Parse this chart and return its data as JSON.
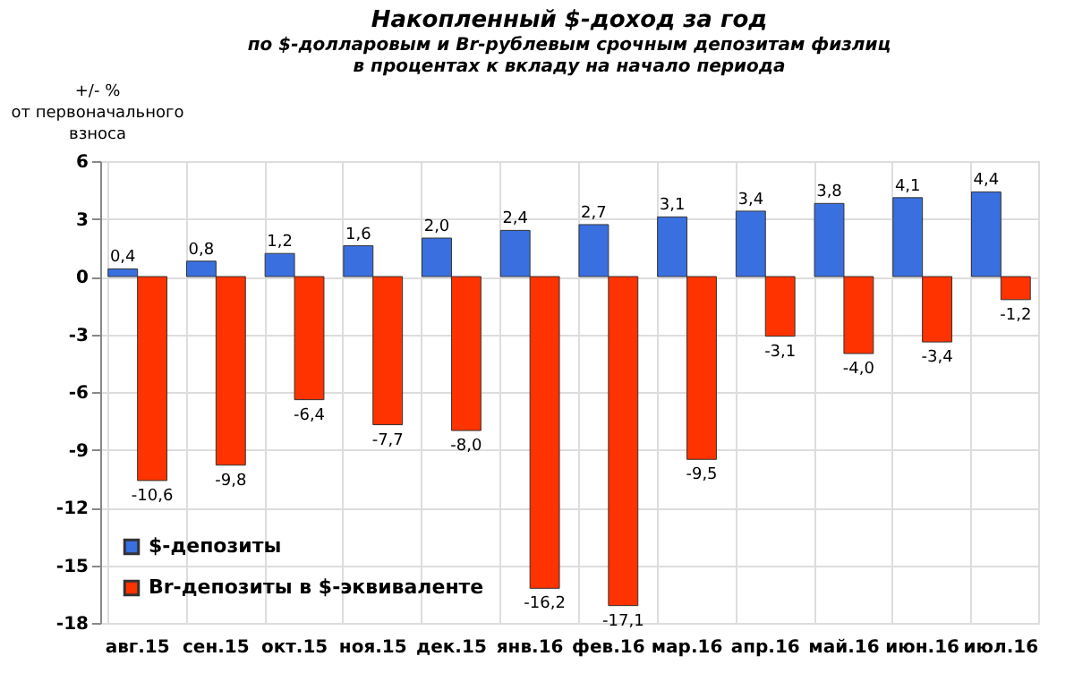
{
  "chart_data": {
    "type": "bar",
    "title": "Накопленный  $-доход за год",
    "subtitle": "по $-долларовым  и Br-рублевым срочным депозитам физлиц\nв процентах к вкладу на начало периода",
    "ylabel": "+/- %\nот первоначального\nвзноса",
    "categories": [
      "авг.15",
      "сен.15",
      "окт.15",
      "ноя.15",
      "дек.15",
      "янв.16",
      "фев.16",
      "мар.16",
      "апр.16",
      "май.16",
      "июн.16",
      "июл.16"
    ],
    "series": [
      {
        "name": "$-депозиты",
        "color": "#3a6fe0",
        "values": [
          0.4,
          0.8,
          1.2,
          1.6,
          2.0,
          2.4,
          2.7,
          3.1,
          3.4,
          3.8,
          4.1,
          4.4
        ],
        "value_labels": [
          "0,4",
          "0,8",
          "1,2",
          "1,6",
          "2,0",
          "2,4",
          "2,7",
          "3,1",
          "3,4",
          "3,8",
          "4,1",
          "4,4"
        ]
      },
      {
        "name": "Br-депозиты в $-эквиваленте",
        "color": "#ff3300",
        "values": [
          -10.6,
          -9.8,
          -6.4,
          -7.7,
          -8.0,
          -16.2,
          -17.1,
          -9.5,
          -3.1,
          -4.0,
          -3.4,
          -1.2
        ],
        "value_labels": [
          "-10,6",
          "-9,8",
          "-6,4",
          "-7,7",
          "-8,0",
          "-16,2",
          "-17,1",
          "-9,5",
          "-3,1",
          "-4,0",
          "-3,4",
          "-1,2"
        ]
      }
    ],
    "ylim": [
      -18,
      6
    ],
    "yticks": [
      -18,
      -15,
      -12,
      -9,
      -6,
      -3,
      0,
      3,
      6
    ],
    "grid": true,
    "legend": "bottom left"
  }
}
